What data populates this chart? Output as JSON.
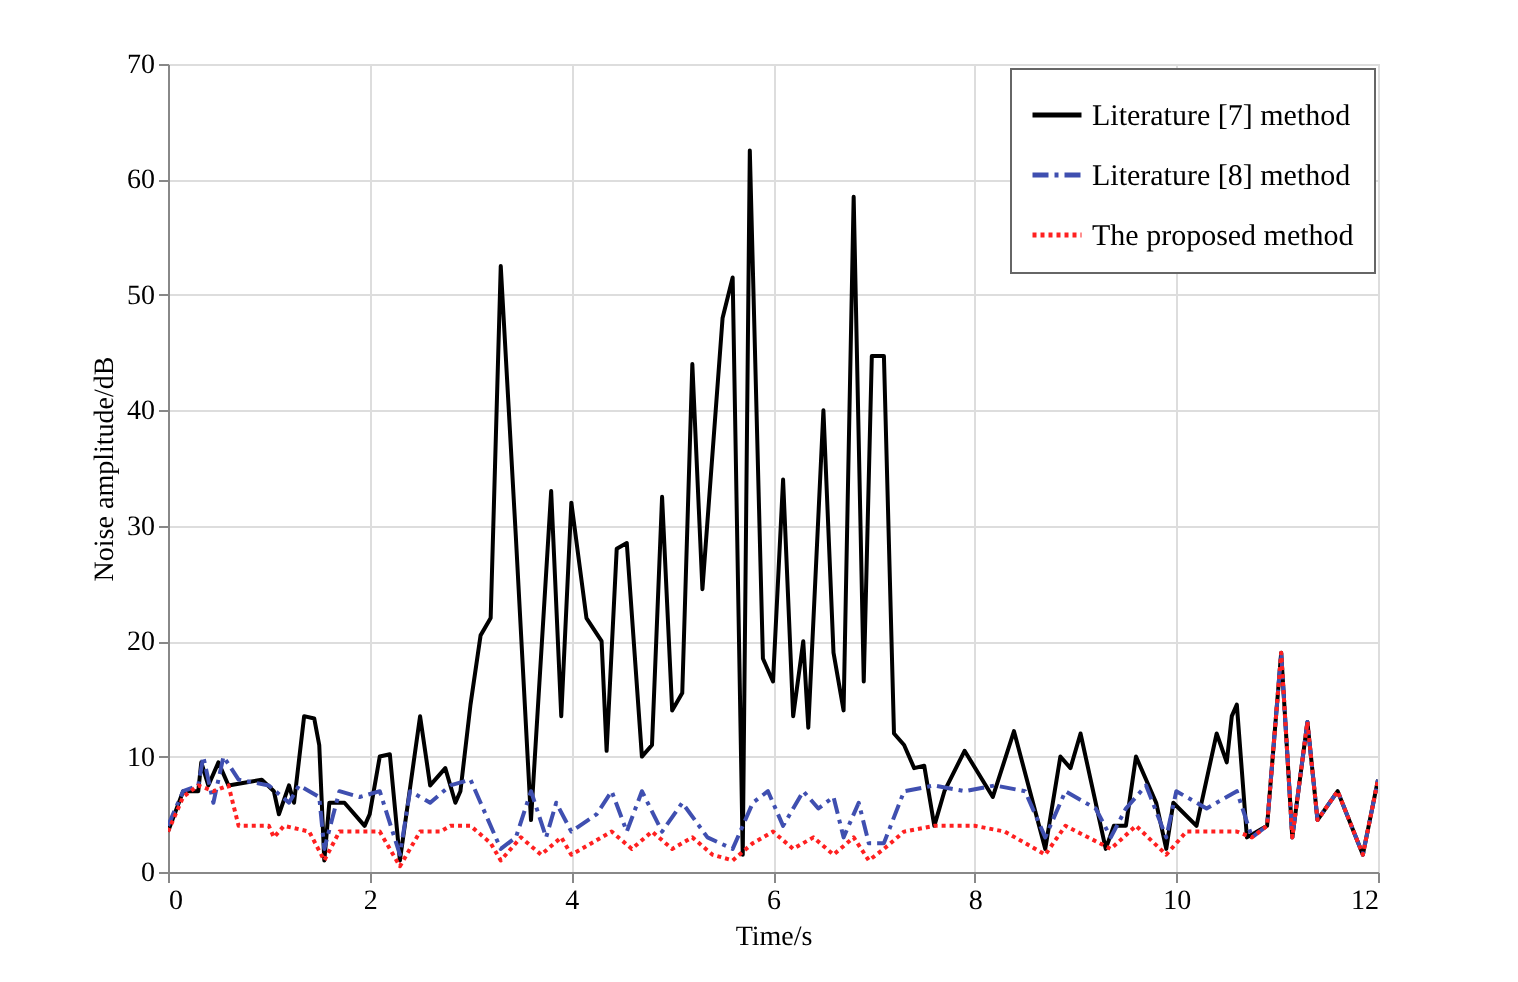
{
  "chart_data": {
    "type": "line",
    "xlabel": "Time/s",
    "ylabel": "Noise amplitude/dB",
    "xlim": [
      0,
      12
    ],
    "ylim": [
      0,
      70
    ],
    "xticks": [
      0,
      2,
      4,
      6,
      8,
      10,
      12
    ],
    "yticks": [
      0,
      10,
      20,
      30,
      40,
      50,
      60,
      70
    ],
    "grid": true,
    "legend": "top right",
    "marker": "none",
    "series": [
      {
        "name": "Literature [7] method",
        "color": "#000000",
        "line_style": "solid",
        "x": [
          0,
          0.15,
          0.3,
          0.33,
          0.4,
          0.5,
          0.6,
          0.8,
          0.93,
          1.05,
          1.1,
          1.2,
          1.25,
          1.35,
          1.45,
          1.5,
          1.55,
          1.6,
          1.75,
          1.95,
          2.0,
          2.1,
          2.2,
          2.3,
          2.5,
          2.6,
          2.75,
          2.85,
          2.9,
          3.0,
          3.1,
          3.2,
          3.3,
          3.45,
          3.6,
          3.8,
          3.9,
          4.0,
          4.15,
          4.3,
          4.35,
          4.45,
          4.55,
          4.7,
          4.8,
          4.9,
          5.0,
          5.1,
          5.2,
          5.3,
          5.5,
          5.6,
          5.7,
          5.77,
          5.9,
          6.0,
          6.1,
          6.2,
          6.3,
          6.35,
          6.5,
          6.6,
          6.7,
          6.8,
          6.9,
          6.98,
          7.1,
          7.2,
          7.3,
          7.4,
          7.5,
          7.6,
          7.7,
          7.9,
          8.18,
          8.39,
          8.7,
          8.85,
          8.95,
          9.05,
          9.3,
          9.38,
          9.5,
          9.6,
          9.8,
          9.9,
          9.97,
          10.2,
          10.4,
          10.5,
          10.55,
          10.6,
          10.7,
          10.9,
          11.04,
          11.15,
          11.3,
          11.4,
          11.6,
          11.85,
          12
        ],
        "values": [
          3.5,
          7,
          7,
          9.5,
          7.5,
          9.5,
          7.5,
          7.8,
          8,
          7,
          5,
          7.5,
          6,
          13.5,
          13.3,
          11,
          1,
          6,
          6,
          4,
          5,
          10,
          10.2,
          1,
          13.5,
          7.5,
          9,
          6,
          7,
          14.5,
          20.5,
          22,
          52.5,
          29,
          4.5,
          33,
          13.5,
          32,
          22,
          20,
          10.5,
          28,
          28.5,
          10,
          11,
          32.5,
          14,
          15.5,
          44,
          24.5,
          48,
          51.5,
          1.5,
          62.5,
          18.5,
          16.5,
          34,
          13.5,
          20,
          12.5,
          40,
          19,
          14,
          58.5,
          16.5,
          44.7,
          44.7,
          12,
          11,
          9,
          9.2,
          4,
          7,
          10.5,
          6.5,
          12.2,
          2,
          10,
          9,
          12,
          2,
          4,
          4,
          10,
          6,
          2,
          6,
          4,
          12,
          9.5,
          13.5,
          14.5,
          3,
          4,
          19,
          3,
          13,
          4.5,
          7,
          1.5,
          8
        ]
      },
      {
        "name": "Literature [8] method",
        "color": "#3f4fb0",
        "line_style": "dashed",
        "x": [
          0,
          0.15,
          0.3,
          0.35,
          0.45,
          0.55,
          0.7,
          1.0,
          1.2,
          1.3,
          1.5,
          1.55,
          1.7,
          1.9,
          2.1,
          2.3,
          2.4,
          2.6,
          2.8,
          3.0,
          3.1,
          3.3,
          3.45,
          3.6,
          3.75,
          3.85,
          4.0,
          4.25,
          4.4,
          4.55,
          4.7,
          4.9,
          5.1,
          5.35,
          5.6,
          5.8,
          5.95,
          6.1,
          6.3,
          6.45,
          6.6,
          6.7,
          6.85,
          6.95,
          7.1,
          7.3,
          7.6,
          7.9,
          8.2,
          8.5,
          8.7,
          8.9,
          9.2,
          9.35,
          9.5,
          9.7,
          9.9,
          10.0,
          10.3,
          10.6,
          10.75,
          10.9,
          11.04,
          11.15,
          11.3,
          11.4,
          11.6,
          11.85,
          12
        ],
        "values": [
          4,
          7,
          7.5,
          10,
          6,
          10,
          8,
          7.5,
          6,
          7.5,
          6.5,
          2,
          7,
          6.5,
          7,
          1.5,
          7,
          6,
          7.5,
          8,
          6,
          2,
          3,
          7,
          3,
          6,
          3.5,
          5,
          7,
          3.5,
          7,
          3.5,
          6,
          3,
          2,
          6,
          7,
          4,
          7,
          5.5,
          6.5,
          3,
          6,
          2.5,
          2.5,
          7,
          7.5,
          7,
          7.5,
          7,
          3,
          7,
          5.5,
          3,
          5.5,
          7.5,
          3,
          7,
          5.5,
          7,
          3,
          4,
          19,
          3,
          13,
          4.5,
          7,
          1.5,
          8
        ]
      },
      {
        "name": "The proposed method",
        "color": "#ff2020",
        "line_style": "dotted",
        "x": [
          0,
          0.15,
          0.3,
          0.45,
          0.6,
          0.7,
          1.0,
          1.05,
          1.15,
          1.4,
          1.55,
          1.7,
          2.1,
          2.3,
          2.5,
          2.7,
          2.8,
          3.0,
          3.2,
          3.3,
          3.5,
          3.7,
          3.9,
          4.0,
          4.2,
          4.4,
          4.6,
          4.8,
          5.0,
          5.2,
          5.4,
          5.6,
          5.8,
          6.0,
          6.2,
          6.4,
          6.6,
          6.8,
          6.95,
          7.1,
          7.3,
          7.6,
          8.0,
          8.3,
          8.7,
          8.9,
          9.35,
          9.6,
          9.9,
          10.1,
          10.6,
          10.75,
          10.9,
          11.04,
          11.15,
          11.3,
          11.4,
          11.6,
          11.85,
          12
        ],
        "values": [
          3.5,
          6.5,
          7.5,
          7,
          7.5,
          4,
          4,
          3,
          4,
          3.5,
          1,
          3.5,
          3.5,
          0.5,
          3.5,
          3.5,
          4,
          4,
          2.5,
          1,
          3,
          1.5,
          3,
          1.5,
          2.5,
          3.5,
          2,
          3.5,
          2,
          3,
          1.5,
          1,
          2.5,
          3.5,
          2,
          3,
          1.5,
          3,
          1,
          2,
          3.5,
          4,
          4,
          3.5,
          1.5,
          4,
          2,
          4,
          1.5,
          3.5,
          3.5,
          3,
          4,
          19,
          3,
          13,
          4.5,
          7,
          1.5,
          8
        ]
      }
    ]
  }
}
